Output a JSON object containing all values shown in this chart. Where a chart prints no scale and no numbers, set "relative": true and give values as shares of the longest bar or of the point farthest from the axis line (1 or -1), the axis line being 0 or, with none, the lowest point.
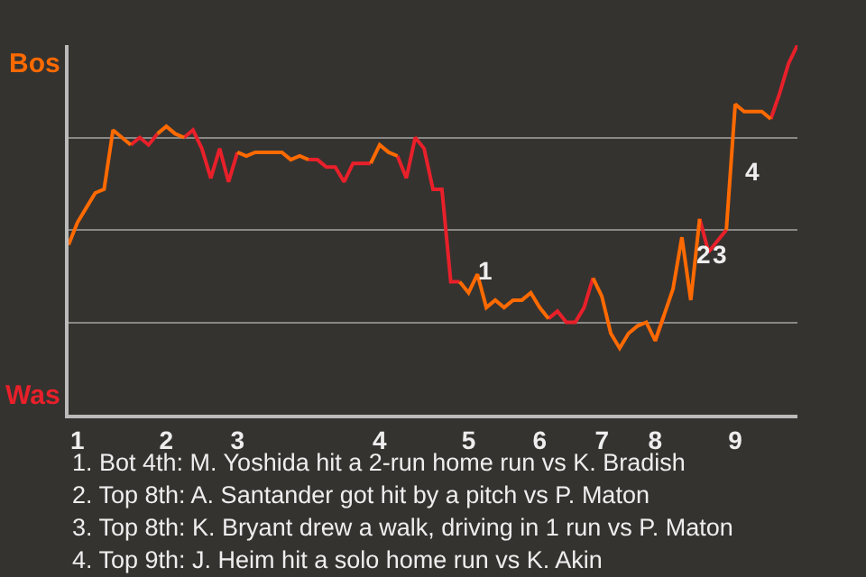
{
  "chart_data": {
    "type": "line",
    "relative": true,
    "categories": [
      null,
      "1",
      null,
      null,
      null,
      null,
      null,
      null,
      null,
      null,
      null,
      "2",
      null,
      null,
      null,
      null,
      null,
      null,
      null,
      "3",
      null,
      null,
      null,
      null,
      null,
      null,
      null,
      null,
      null,
      null,
      null,
      null,
      null,
      null,
      null,
      "4",
      null,
      null,
      null,
      null,
      null,
      null,
      null,
      null,
      null,
      "5",
      null,
      null,
      null,
      null,
      null,
      null,
      null,
      "6",
      null,
      null,
      null,
      null,
      null,
      null,
      "7",
      null,
      null,
      null,
      null,
      null,
      "8",
      null,
      null,
      null,
      null,
      null,
      null,
      null,
      null,
      "9",
      null,
      null,
      null,
      null,
      null,
      null,
      null
    ],
    "series": [
      {
        "color": "#ff6a00",
        "values": [
          0.46,
          0.52,
          0.56,
          0.6,
          0.61,
          0.77,
          0.75,
          0.73,
          null,
          null,
          0.76,
          0.78,
          0.76,
          0.75,
          null,
          null,
          null,
          null,
          null,
          0.71,
          0.7,
          0.71,
          0.71,
          0.71,
          0.71,
          0.69,
          0.7,
          0.69,
          null,
          null,
          null,
          null,
          null,
          null,
          0.68,
          0.73,
          0.71,
          0.7,
          null,
          null,
          null,
          null,
          null,
          null,
          0.36,
          0.33,
          0.38,
          0.29,
          0.31,
          0.29,
          0.31,
          0.31,
          0.33,
          0.29,
          0.26,
          null,
          null,
          null,
          null,
          0.37,
          0.32,
          0.22,
          0.18,
          0.22,
          0.24,
          0.25,
          0.2,
          0.27,
          0.34,
          0.48,
          0.31,
          0.53,
          null,
          null,
          0.5,
          0.84,
          0.82,
          0.82,
          0.82,
          0.8,
          null,
          null,
          null
        ]
      },
      {
        "color": "#e8202a",
        "values": [
          null,
          null,
          null,
          null,
          null,
          null,
          null,
          0.73,
          0.75,
          0.73,
          0.76,
          null,
          null,
          0.75,
          0.77,
          0.72,
          0.64,
          0.72,
          0.63,
          0.71,
          null,
          null,
          null,
          null,
          null,
          null,
          null,
          0.69,
          0.69,
          0.67,
          0.67,
          0.63,
          0.68,
          0.68,
          0.68,
          null,
          null,
          0.7,
          0.64,
          0.75,
          0.72,
          0.61,
          0.61,
          0.36,
          0.36,
          null,
          null,
          null,
          null,
          null,
          null,
          null,
          null,
          null,
          0.26,
          0.28,
          0.25,
          0.25,
          0.29,
          0.37,
          null,
          null,
          null,
          null,
          null,
          null,
          0.2,
          0.27,
          null,
          null,
          null,
          0.53,
          0.44,
          0.47,
          0.5,
          null,
          null,
          null,
          null,
          0.8,
          0.87,
          0.95,
          1.0
        ]
      }
    ],
    "grid": "y",
    "marker": "none",
    "line_style": "solid",
    "annotations": [
      "Bos",
      "Was",
      {
        "text": "1",
        "x": "5",
        "y": 0.33
      },
      {
        "text": "2",
        "x": "9",
        "y": 0.5
      },
      {
        "text": "3",
        "x": "9",
        "y": 0.5
      },
      {
        "text": "4",
        "x": "9",
        "y": 0.6
      },
      "1. Bot 4th: M. Yoshida hit a 2-run home run vs K. Bradish",
      "2. Top 8th: A. Santander got hit by a pitch vs P. Maton",
      "3. Top 8th: K. Bryant drew a walk, driving in 1 run vs P. Maton",
      "4. Top 9th: J. Heim hit a solo home run vs K. Akin"
    ]
  }
}
